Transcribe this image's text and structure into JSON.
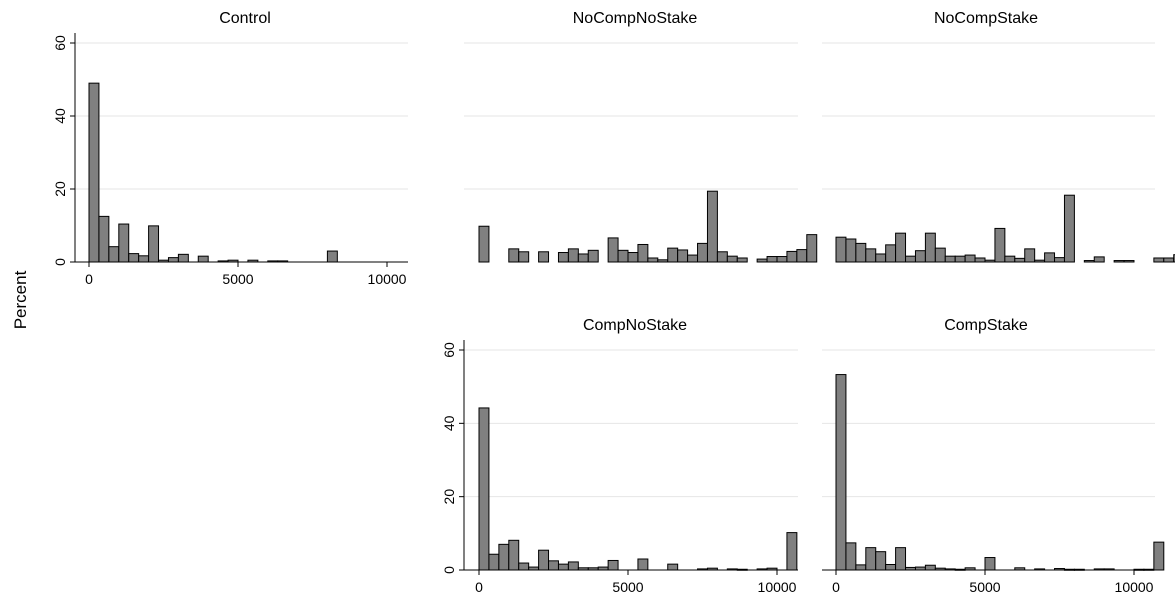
{
  "chart_data": {
    "type": "bar",
    "ylabel": "Percent",
    "bar_color": "#808080",
    "bar_edge_color": "#000000",
    "grid_color": "#e6e6e6",
    "grid": true,
    "bin_width": 333.33,
    "x_range": [
      0,
      10000
    ],
    "ylim": [
      0,
      60
    ],
    "x_ticks": [
      "0",
      "5000",
      "10000"
    ],
    "y_ticks": [
      "0",
      "20",
      "40",
      "60"
    ],
    "panels": [
      {
        "title": "Control",
        "values": [
          49,
          12.5,
          4.2,
          10.4,
          2.3,
          1.7,
          9.9,
          0.5,
          1.2,
          2.1,
          0,
          1.6,
          0,
          0.3,
          0.5,
          0,
          0.5,
          0,
          0.3,
          0.3,
          0,
          0,
          0,
          0,
          3,
          0,
          0,
          0,
          0,
          0
        ]
      },
      {
        "title": "NoCompNoStake",
        "values": [
          9.8,
          0,
          0,
          3.6,
          2.8,
          0,
          2.8,
          0,
          2.6,
          3.6,
          2.2,
          3.2,
          0,
          6.6,
          3.2,
          2.6,
          4.8,
          1.1,
          0.6,
          3.8,
          3.3,
          1.9,
          5.1,
          19.4,
          2.8,
          1.6,
          1.1,
          0,
          0.8,
          1.5,
          1.5,
          2.9,
          3.4,
          7.5
        ]
      },
      {
        "title": "NoCompStake",
        "values": [
          6.8,
          6.3,
          5.1,
          3.6,
          2.2,
          4.7,
          7.9,
          1.6,
          3.1,
          7.9,
          3.8,
          1.6,
          1.6,
          1.9,
          1.1,
          0.5,
          9.2,
          1.6,
          1,
          3.6,
          0.5,
          2.5,
          1.2,
          18.3,
          0,
          0.4,
          1.4,
          0,
          0.4,
          0.4,
          0,
          0,
          1.1,
          1.1,
          2
        ]
      },
      {
        "title": "CompNoStake",
        "values": [
          44.2,
          4.3,
          7,
          8.1,
          1.9,
          0.8,
          5.4,
          2.5,
          1.6,
          2.2,
          0.6,
          0.6,
          0.8,
          2.6,
          0,
          0,
          3,
          0,
          0,
          1.6,
          0,
          0,
          0.3,
          0.5,
          0,
          0.3,
          0.2,
          0,
          0.3,
          0.5,
          0,
          10.2
        ]
      },
      {
        "title": "CompStake",
        "values": [
          53.3,
          7.4,
          1.4,
          6.1,
          5,
          1.5,
          6.1,
          0.7,
          0.8,
          1.3,
          0.5,
          0.3,
          0.2,
          0.6,
          0,
          3.4,
          0,
          0,
          0.6,
          0,
          0.3,
          0,
          0.4,
          0.2,
          0.2,
          0,
          0.3,
          0.3,
          0,
          0,
          0.2,
          0.2,
          7.6
        ]
      }
    ]
  }
}
